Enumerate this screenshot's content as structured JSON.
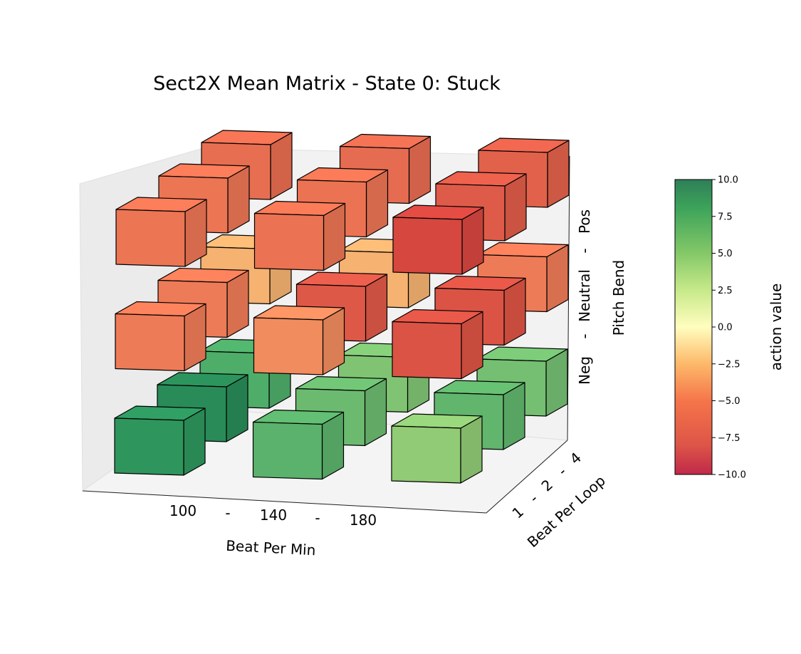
{
  "chart_data": {
    "type": "3d-bar",
    "title": "Sect2X Mean Matrix - State 0: Stuck",
    "xlabel": "Beat Per Min",
    "ylabel": "Beat Per Loop",
    "zlabel": "Pitch Bend",
    "x_ticks": [
      "100",
      "-",
      "140",
      "-",
      "180"
    ],
    "y_ticks": [
      "1",
      "-",
      "2",
      "-",
      "4"
    ],
    "z_ticks": [
      "Neg",
      "-",
      "Neutral",
      "-",
      "Pos"
    ],
    "x_categories": [
      "100",
      "140",
      "180"
    ],
    "y_categories": [
      "1",
      "2",
      "4"
    ],
    "z_categories": [
      "Neg",
      "Neutral",
      "Pos"
    ],
    "values": {
      "Neg": {
        "1": [
          8.5,
          6.8,
          5.0
        ],
        "2": [
          9.0,
          6.3,
          6.6
        ],
        "4": [
          7.2,
          5.6,
          6.0
        ]
      },
      "Neutral": {
        "1": [
          -6.0,
          -5.4,
          -7.5
        ],
        "2": [
          -6.0,
          -7.3,
          -7.5
        ],
        "4": [
          -4.0,
          -4.0,
          -6.0
        ]
      },
      "Pos": {
        "1": [
          -6.2,
          -6.3,
          -8.0
        ],
        "2": [
          -6.2,
          -6.3,
          -7.2
        ],
        "4": [
          -6.5,
          -6.6,
          -7.0
        ]
      }
    },
    "colorbar": {
      "label": "action value",
      "min": -10.0,
      "max": 10.0,
      "ticks": [
        "10.0",
        "7.5",
        "5.0",
        "2.5",
        "0.0",
        "−2.5",
        "−5.0",
        "−7.5",
        "−10.0"
      ],
      "colormap": "RdYlGn"
    }
  }
}
